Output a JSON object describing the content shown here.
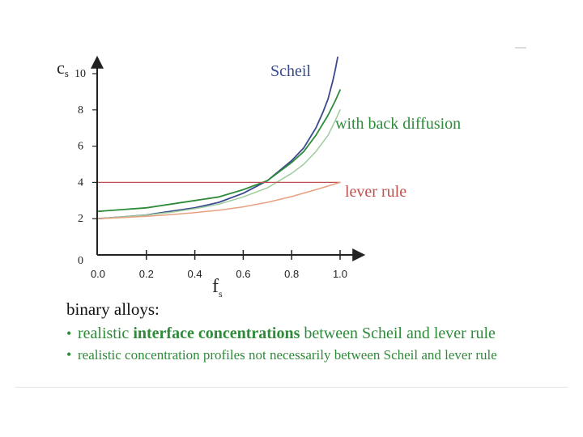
{
  "colors": {
    "scheil": "#3a4a8c",
    "back_diffusion": "#2e8b3a",
    "back_diffusion_light": "#9ccc9c",
    "lever": "#c0504d",
    "lever_light": "#e9a080",
    "axis": "#222222",
    "bullet_text": "#2e8b3a"
  },
  "chart_data": {
    "type": "line",
    "ylabel": "c",
    "ylabel_sub": "s",
    "xlabel": "f",
    "xlabel_sub": "s",
    "xlim": [
      -0.05,
      1.1
    ],
    "ylim": [
      0,
      11
    ],
    "x_ticks": [
      {
        "value": 0.0,
        "label": "0.0"
      },
      {
        "value": 0.2,
        "label": "0.2"
      },
      {
        "value": 0.4,
        "label": "0.4"
      },
      {
        "value": 0.6,
        "label": "0.6"
      },
      {
        "value": 0.8,
        "label": "0.8"
      },
      {
        "value": 1.0,
        "label": "1.0"
      }
    ],
    "y_ticks": [
      {
        "value": 0,
        "label": "0"
      },
      {
        "value": 2,
        "label": "2"
      },
      {
        "value": 4,
        "label": "4"
      },
      {
        "value": 6,
        "label": "6"
      },
      {
        "value": 8,
        "label": "8"
      },
      {
        "value": 10,
        "label": "10"
      }
    ],
    "series": [
      {
        "name": "Scheil",
        "label": "Scheil",
        "color": "#3a4a8c",
        "width": 1.8,
        "x": [
          0.0,
          0.1,
          0.2,
          0.3,
          0.4,
          0.5,
          0.6,
          0.7,
          0.8,
          0.85,
          0.9,
          0.93,
          0.95,
          0.97,
          0.98,
          0.99
        ],
        "y": [
          2.0,
          2.1,
          2.2,
          2.4,
          2.6,
          2.9,
          3.4,
          4.1,
          5.2,
          5.9,
          7.0,
          7.9,
          8.6,
          9.6,
          10.2,
          10.9
        ]
      },
      {
        "name": "with back diffusion",
        "label": "with back diffusion",
        "color": "#2e8b3a",
        "width": 1.8,
        "x": [
          0.0,
          0.1,
          0.2,
          0.3,
          0.4,
          0.5,
          0.6,
          0.7,
          0.8,
          0.85,
          0.9,
          0.95,
          0.98,
          1.0
        ],
        "y": [
          2.4,
          2.5,
          2.6,
          2.8,
          3.0,
          3.2,
          3.6,
          4.1,
          5.1,
          5.7,
          6.6,
          7.7,
          8.5,
          9.1
        ]
      },
      {
        "name": "back diffusion (light)",
        "color": "#9ccc9c",
        "width": 1.5,
        "x": [
          0.0,
          0.1,
          0.2,
          0.3,
          0.4,
          0.5,
          0.6,
          0.7,
          0.8,
          0.85,
          0.9,
          0.95,
          0.98,
          1.0
        ],
        "y": [
          2.0,
          2.1,
          2.2,
          2.35,
          2.55,
          2.8,
          3.2,
          3.7,
          4.5,
          5.0,
          5.7,
          6.6,
          7.4,
          8.0
        ]
      },
      {
        "name": "lever rule",
        "color": "#c0504d",
        "width": 1.2,
        "x": [
          0.0,
          1.0
        ],
        "y": [
          4.0,
          4.0
        ]
      },
      {
        "name": "lever rule (curve)",
        "color": "#e9a080",
        "width": 1.5,
        "x": [
          0.0,
          0.1,
          0.2,
          0.3,
          0.4,
          0.5,
          0.6,
          0.7,
          0.8,
          0.9,
          1.0
        ],
        "y": [
          2.0,
          2.06,
          2.13,
          2.22,
          2.33,
          2.47,
          2.65,
          2.9,
          3.22,
          3.6,
          4.0
        ]
      }
    ],
    "annotations": [
      {
        "text": "Scheil",
        "color": "#3a4a8c"
      },
      {
        "text": "with back diffusion",
        "color": "#2e8b3a"
      },
      {
        "text": "lever rule",
        "color": "#c0504d"
      }
    ]
  },
  "text": {
    "heading": "binary alloys:",
    "bullet1": {
      "marker": "•",
      "pre": "realistic ",
      "bold": "interface concentrations",
      "post": " between Scheil and lever rule"
    },
    "bullet2": {
      "marker": "•",
      "text": "realistic concentration profiles not necessarily between Scheil and lever rule"
    }
  }
}
